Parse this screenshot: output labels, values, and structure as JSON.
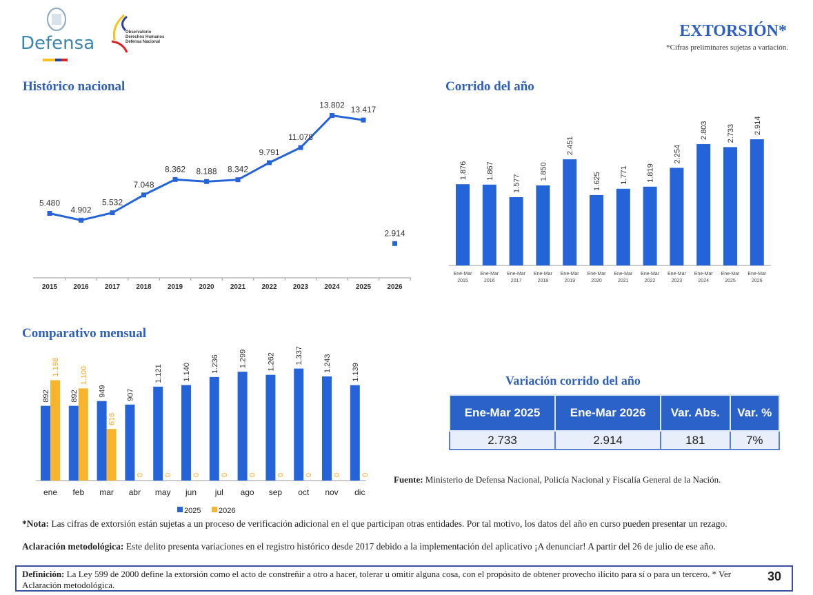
{
  "header": {
    "logo_text": "Defensa",
    "observatorio": [
      "Observatorio",
      "Derechos Humanos",
      "Defensa Nacional"
    ],
    "title": "EXTORSIÓN*",
    "subtitle": "*Cifras preliminares sujetas a variación."
  },
  "colors": {
    "accent": "#2d5fc0",
    "bar2025": "#2563d9",
    "bar2026": "#f7b42c",
    "line": "#2563d9"
  },
  "chart_data": [
    {
      "type": "line",
      "title": "Histórico nacional",
      "categories": [
        "2015",
        "2016",
        "2017",
        "2018",
        "2019",
        "2020",
        "2021",
        "2022",
        "2023",
        "2024",
        "2025",
        "2026"
      ],
      "values": [
        5480,
        4902,
        5532,
        7048,
        8362,
        8188,
        8342,
        9791,
        11078,
        13802,
        13417,
        2914
      ],
      "labels": [
        "5.480",
        "4.902",
        "5.532",
        "7.048",
        "8.362",
        "8.188",
        "8.342",
        "9.791",
        "11.078",
        "13.802",
        "13.417",
        "2.914"
      ],
      "note_last_point_disconnected": true,
      "grid": false
    },
    {
      "type": "bar",
      "title": "Corrido del año",
      "categories": [
        "Ene-Mar 2015",
        "Ene-Mar 2016",
        "Ene-Mar 2017",
        "Ene-Mar 2018",
        "Ene-Mar 2019",
        "Ene-Mar 2020",
        "Ene-Mar 2021",
        "Ene-Mar 2022",
        "Ene-Mar 2023",
        "Ene-Mar 2024",
        "Ene-Mar 2025",
        "Ene-Mar 2026"
      ],
      "values": [
        1876,
        1867,
        1577,
        1850,
        2451,
        1625,
        1771,
        1819,
        2254,
        2803,
        2733,
        2914
      ],
      "labels": [
        "1.876",
        "1.867",
        "1.577",
        "1.850",
        "2.451",
        "1.625",
        "1.771",
        "1.819",
        "2.254",
        "2.803",
        "2.733",
        "2.914"
      ],
      "grid": false
    },
    {
      "type": "bar",
      "title": "Comparativo mensual",
      "categories": [
        "ene",
        "feb",
        "mar",
        "abr",
        "may",
        "jun",
        "jul",
        "ago",
        "sep",
        "oct",
        "nov",
        "dic"
      ],
      "legend_position": "bottom",
      "series": [
        {
          "name": "2025",
          "values": [
            892,
            892,
            949,
            907,
            1121,
            1140,
            1236,
            1299,
            1262,
            1337,
            1243,
            1139
          ],
          "labels": [
            "892",
            "892",
            "949",
            "907",
            "1.121",
            "1.140",
            "1.236",
            "1.299",
            "1.262",
            "1.337",
            "1.243",
            "1.139"
          ]
        },
        {
          "name": "2026",
          "values": [
            1198,
            1100,
            616,
            0,
            0,
            0,
            0,
            0,
            0,
            0,
            0,
            0
          ],
          "labels": [
            "1.198",
            "1.100",
            "616",
            "0",
            "0",
            "0",
            "0",
            "0",
            "0",
            "0",
            "0",
            "0"
          ]
        }
      ]
    }
  ],
  "variation": {
    "title": "Variación corrido del año",
    "headers": [
      "Ene-Mar 2025",
      "Ene-Mar 2026",
      "Var. Abs.",
      "Var. %"
    ],
    "values": [
      "2.733",
      "2.914",
      "181",
      "7%"
    ]
  },
  "source": {
    "label": "Fuente:",
    "text": " Ministerio de Defensa Nacional, Policía Nacional y Fiscalía General de la Nación."
  },
  "notes": {
    "nota_label": "*Nota:",
    "nota_text": " Las cifras de extorsión están sujetas a un proceso de verificación adicional en el que participan otras entidades. Por tal motivo, los datos del año en curso pueden presentar un rezago.",
    "aclaracion_label": "Aclaración metodológica:",
    "aclaracion_text": " Este delito presenta variaciones en el registro histórico desde 2017 debido a la implementación del aplicativo ¡A denunciar! A partir del 26 de julio de ese año.",
    "definicion_label": "Definición:",
    "definicion_text": " La Ley 599 de 2000 define la extorsión como el acto de constreñir a otro a hacer, tolerar u omitir alguna cosa, con el propósito de obtener provecho ilícito para sí o para un tercero. * Ver Aclaración metodológica."
  },
  "page_number": "30"
}
